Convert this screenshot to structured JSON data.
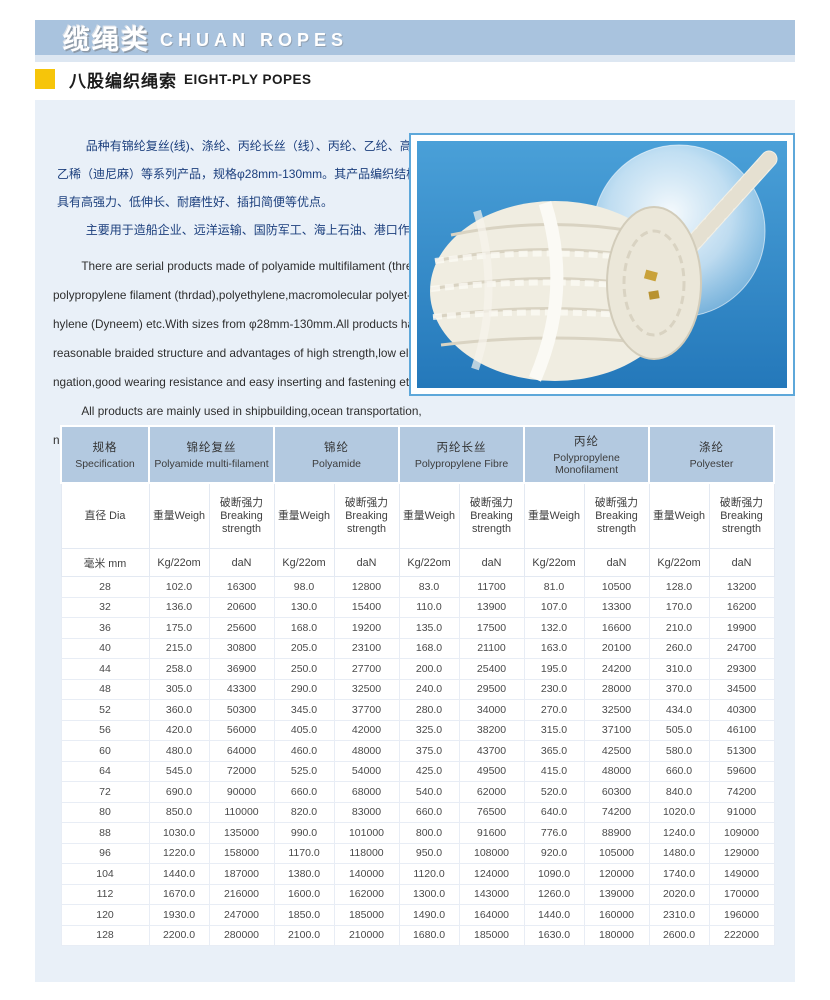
{
  "banner": {
    "title_zh": "缆绳类",
    "title_en": "CHUAN ROPES"
  },
  "subtitle": {
    "zh": "八股编织绳索",
    "en": "EIGHT-PLY POPES"
  },
  "colors": {
    "banner_blue": "#a9c3de",
    "panel_bg": "#e9f0f8",
    "accent_yellow": "#f6c50a",
    "table_header_blue": "#b3c9e0",
    "photo_blue": "#2e86c6",
    "intro_zh_text": "#1c3f7d"
  },
  "intro": {
    "zh_paragraphs": [
      [
        "品种有锦纶复丝(线)、涤纶、丙纶长丝（线）、丙纶、乙纶、高分子聚",
        "乙稀（迪尼麻）等系列产品，规格φ28mm-130mm。其产品编织结构合理，",
        "具有高强力、低伸长、耐磨性好、插扣简便等优点。"
      ],
      [
        "主要用于造船企业、远洋运输、国防军工、海上石油、港口作业等领域。"
      ]
    ],
    "en_paragraphs": [
      [
        "There are serial products made of polyamide multifilament (thread),",
        "polypropylene filament (thrdad),polyethylene,macromolecular polyet-",
        "hylene (Dyneem) etc.With sizes from φ28mm-130mm.All products have",
        "reasonable braided structure and advantages of high strength,low elo-",
        "ngation,good wearing resistance and easy  inserting and fastening etc."
      ],
      [
        "All products are mainly used in shipbuilding,ocean transportation,",
        "national defense and military industry,ocean petroleum,harbor works etc."
      ]
    ]
  },
  "table": {
    "groups": [
      {
        "zh": "规格",
        "en": "Specification"
      },
      {
        "zh": "锦纶复丝",
        "en": "Polyamide multi-filament"
      },
      {
        "zh": "锦纶",
        "en": "Polyamide"
      },
      {
        "zh": "丙纶长丝",
        "en": "Polypropylene Fibre"
      },
      {
        "zh": "丙纶",
        "en": "Polypropylene Monofilament"
      },
      {
        "zh": "涤纶",
        "en": "Polyester"
      }
    ],
    "sub": {
      "dia": "直径 Dia",
      "weight": "重量Weigh",
      "strength_zh": "破断强力",
      "strength_en1": "Breaking",
      "strength_en2": "strength"
    },
    "units": {
      "dia": "毫米 mm",
      "weight": "Kg/22om",
      "strength": "daN"
    },
    "rows": [
      [
        "28",
        "102.0",
        "16300",
        "98.0",
        "12800",
        "83.0",
        "11700",
        "81.0",
        "10500",
        "128.0",
        "13200"
      ],
      [
        "32",
        "136.0",
        "20600",
        "130.0",
        "15400",
        "110.0",
        "13900",
        "107.0",
        "13300",
        "170.0",
        "16200"
      ],
      [
        "36",
        "175.0",
        "25600",
        "168.0",
        "19200",
        "135.0",
        "17500",
        "132.0",
        "16600",
        "210.0",
        "19900"
      ],
      [
        "40",
        "215.0",
        "30800",
        "205.0",
        "23100",
        "168.0",
        "21100",
        "163.0",
        "20100",
        "260.0",
        "24700"
      ],
      [
        "44",
        "258.0",
        "36900",
        "250.0",
        "27700",
        "200.0",
        "25400",
        "195.0",
        "24200",
        "310.0",
        "29300"
      ],
      [
        "48",
        "305.0",
        "43300",
        "290.0",
        "32500",
        "240.0",
        "29500",
        "230.0",
        "28000",
        "370.0",
        "34500"
      ],
      [
        "52",
        "360.0",
        "50300",
        "345.0",
        "37700",
        "280.0",
        "34000",
        "270.0",
        "32500",
        "434.0",
        "40300"
      ],
      [
        "56",
        "420.0",
        "56000",
        "405.0",
        "42000",
        "325.0",
        "38200",
        "315.0",
        "37100",
        "505.0",
        "46100"
      ],
      [
        "60",
        "480.0",
        "64000",
        "460.0",
        "48000",
        "375.0",
        "43700",
        "365.0",
        "42500",
        "580.0",
        "51300"
      ],
      [
        "64",
        "545.0",
        "72000",
        "525.0",
        "54000",
        "425.0",
        "49500",
        "415.0",
        "48000",
        "660.0",
        "59600"
      ],
      [
        "72",
        "690.0",
        "90000",
        "660.0",
        "68000",
        "540.0",
        "62000",
        "520.0",
        "60300",
        "840.0",
        "74200"
      ],
      [
        "80",
        "850.0",
        "110000",
        "820.0",
        "83000",
        "660.0",
        "76500",
        "640.0",
        "74200",
        "1020.0",
        "91000"
      ],
      [
        "88",
        "1030.0",
        "135000",
        "990.0",
        "101000",
        "800.0",
        "91600",
        "776.0",
        "88900",
        "1240.0",
        "109000"
      ],
      [
        "96",
        "1220.0",
        "158000",
        "1170.0",
        "118000",
        "950.0",
        "108000",
        "920.0",
        "105000",
        "1480.0",
        "129000"
      ],
      [
        "104",
        "1440.0",
        "187000",
        "1380.0",
        "140000",
        "1120.0",
        "124000",
        "1090.0",
        "120000",
        "1740.0",
        "149000"
      ],
      [
        "112",
        "1670.0",
        "216000",
        "1600.0",
        "162000",
        "1300.0",
        "143000",
        "1260.0",
        "139000",
        "2020.0",
        "170000"
      ],
      [
        "120",
        "1930.0",
        "247000",
        "1850.0",
        "185000",
        "1490.0",
        "164000",
        "1440.0",
        "160000",
        "2310.0",
        "196000"
      ],
      [
        "128",
        "2200.0",
        "280000",
        "2100.0",
        "210000",
        "1680.0",
        "185000",
        "1630.0",
        "180000",
        "2600.0",
        "222000"
      ]
    ]
  }
}
